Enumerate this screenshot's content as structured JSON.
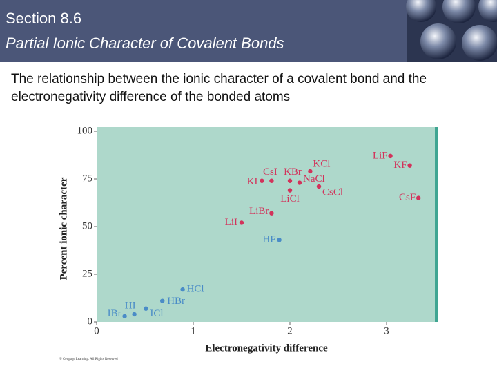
{
  "header": {
    "title": "Section 8.6",
    "subtitle": "Partial Ionic Character of Covalent Bonds"
  },
  "body": "The relationship between the ionic character of a covalent bond and the electronegativity difference of the bonded atoms",
  "chart_data": {
    "type": "scatter",
    "xlabel": "Electronegativity difference",
    "ylabel": "Percent ionic character",
    "xlim": [
      0,
      3.5
    ],
    "ylim": [
      0,
      100
    ],
    "xticks": [
      0,
      1,
      2,
      3
    ],
    "yticks": [
      0,
      25,
      50,
      75,
      100
    ],
    "background": "#aed8cb",
    "series": [
      {
        "color": "#d2335b",
        "labels": [
          "LiF",
          "KF",
          "CsF",
          "KCl",
          "CsI",
          "KBr",
          "NaCl",
          "KI",
          "CsCl",
          "LiCl",
          "LiBr",
          "LiI"
        ],
        "x": [
          3.04,
          3.24,
          3.33,
          2.21,
          1.81,
          2.0,
          2.1,
          1.71,
          2.3,
          2.0,
          1.81,
          1.5
        ],
        "values": [
          87,
          82,
          65,
          79,
          74,
          74,
          73,
          74,
          71,
          69,
          57,
          52
        ]
      },
      {
        "color": "#4a8cc7",
        "labels": [
          "HF",
          "HCl",
          "HBr",
          "ICl",
          "HI",
          "IBr"
        ],
        "x": [
          1.89,
          0.89,
          0.68,
          0.51,
          0.39,
          0.29
        ],
        "values": [
          43,
          17,
          11,
          7,
          4,
          3
        ]
      }
    ],
    "footnote": "© Cengage Learning. All Rights Reserved"
  }
}
